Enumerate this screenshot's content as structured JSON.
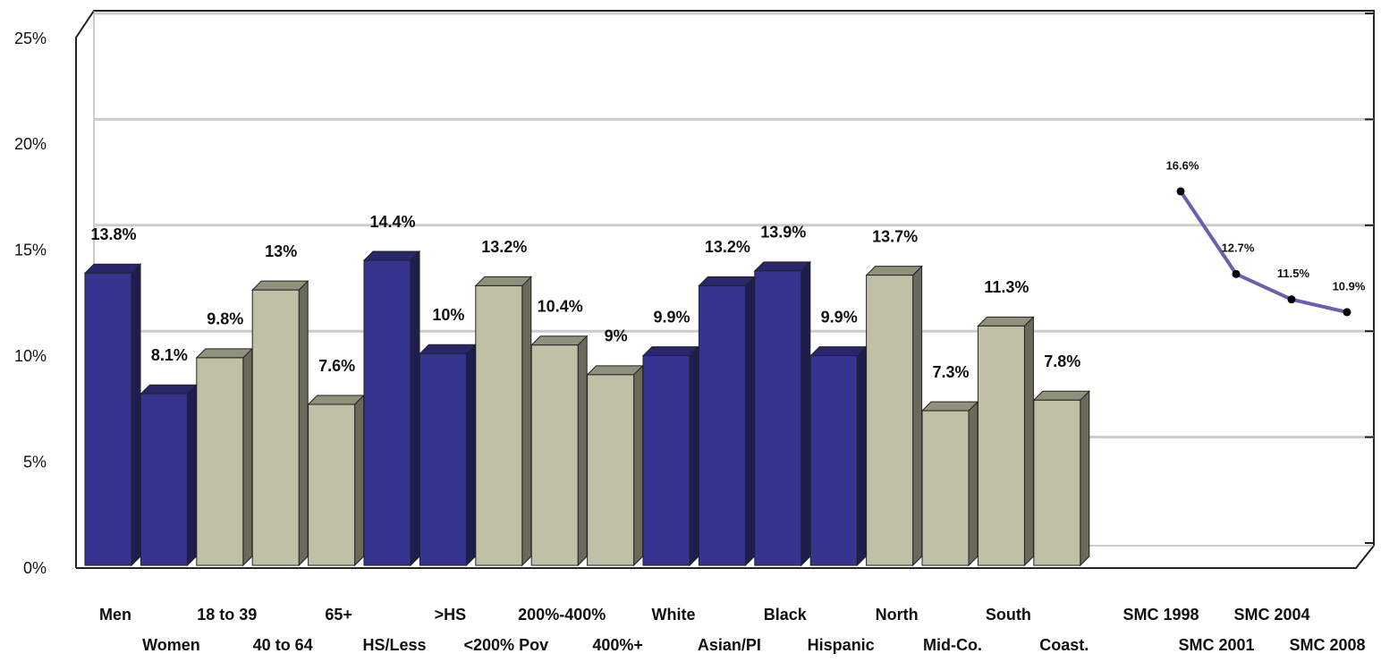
{
  "chart_data": [
    {
      "type": "bar",
      "categories": [
        "Men",
        "Women",
        "18 to 39",
        "40 to 64",
        "65+",
        "HS/Less",
        ">HS",
        "<200% Pov",
        "200%-400%",
        "400%+",
        "White",
        "Asian/PI",
        "Black",
        "Hispanic",
        "North",
        "Mid-Co.",
        "South",
        "Coast."
      ],
      "values": [
        13.8,
        8.1,
        9.8,
        13,
        7.6,
        14.4,
        10,
        13.2,
        10.4,
        9,
        9.9,
        13.2,
        13.9,
        9.9,
        13.7,
        7.3,
        11.3,
        7.8
      ],
      "value_labels": [
        "13.8%",
        "8.1%",
        "9.8%",
        "13%",
        "7.6%",
        "14.4%",
        "10%",
        "13.2%",
        "10.4%",
        "9%",
        "9.9%",
        "13.2%",
        "13.9%",
        "9.9%",
        "13.7%",
        "7.3%",
        "11.3%",
        "7.8%"
      ],
      "colors": [
        "#35348e",
        "#35348e",
        "#c0c0a6",
        "#c0c0a6",
        "#c0c0a6",
        "#35348e",
        "#35348e",
        "#c0c0a6",
        "#c0c0a6",
        "#c0c0a6",
        "#35348e",
        "#35348e",
        "#35348e",
        "#35348e",
        "#c0c0a6",
        "#c0c0a6",
        "#c0c0a6",
        "#c0c0a6"
      ],
      "ylim": [
        0,
        25
      ],
      "yticks": [
        {
          "value": 0,
          "label": "0%"
        },
        {
          "value": 5,
          "label": "5%"
        },
        {
          "value": 10,
          "label": "10%"
        },
        {
          "value": 15,
          "label": "15%"
        },
        {
          "value": 20,
          "label": "20%"
        },
        {
          "value": 25,
          "label": "25%"
        }
      ],
      "grid": true
    },
    {
      "type": "line",
      "categories": [
        "SMC 1998",
        "SMC 2001",
        "SMC 2004",
        "SMC 2008"
      ],
      "values": [
        16.6,
        12.7,
        11.5,
        10.9
      ],
      "value_labels": [
        "16.6%",
        "12.7%",
        "11.5%",
        "10.9%"
      ],
      "color": "#6a60b0",
      "ylim": [
        0,
        25
      ]
    }
  ]
}
